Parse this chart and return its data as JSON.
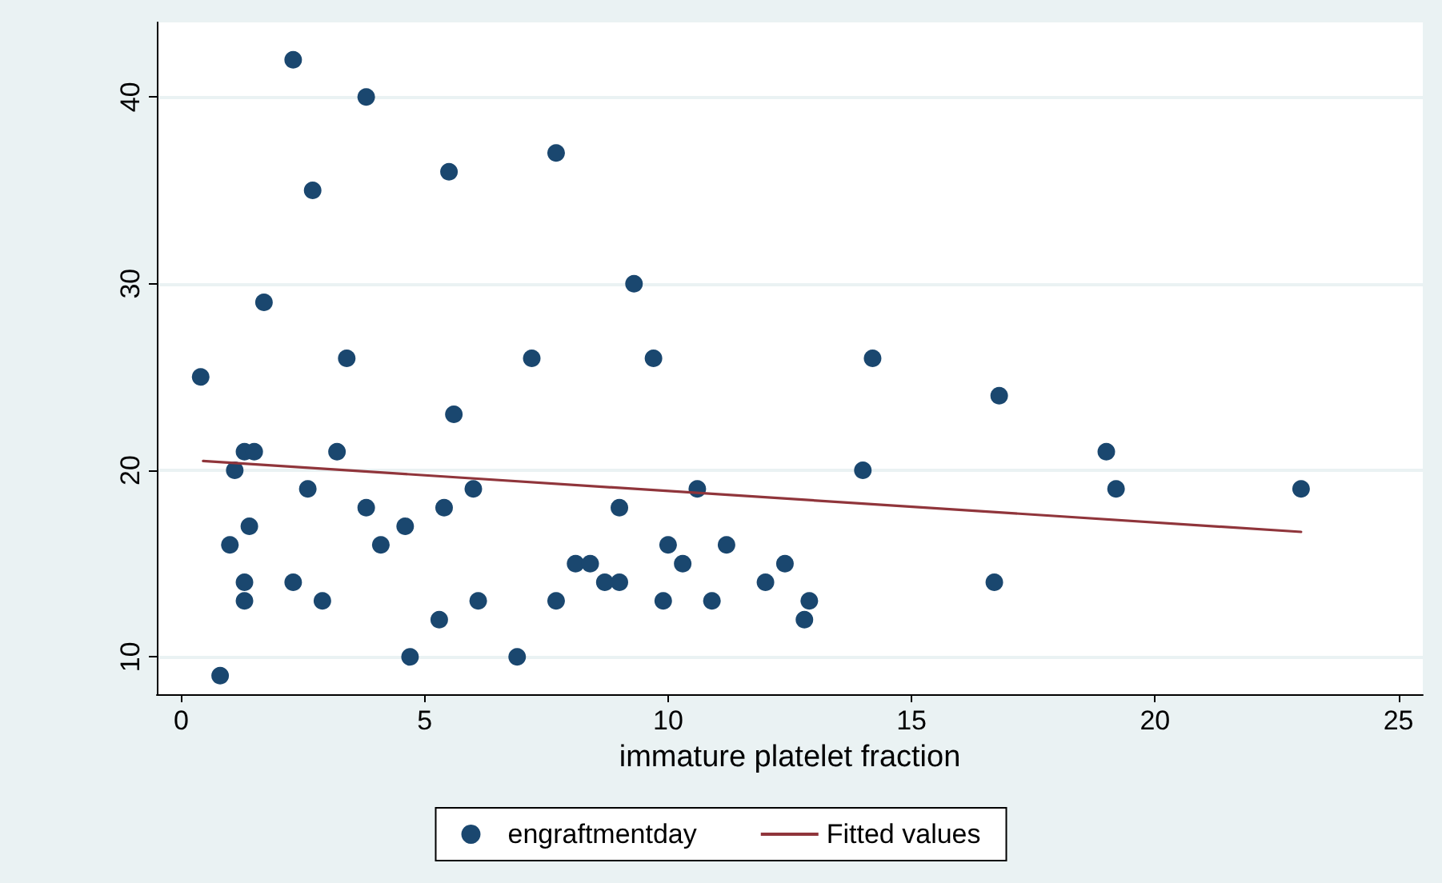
{
  "chart_data": {
    "type": "scatter",
    "xlabel": "immature platelet fraction",
    "xlim": [
      -0.5,
      25.5
    ],
    "xticks": [
      0,
      5,
      10,
      15,
      20,
      25
    ],
    "ylim": [
      8,
      44
    ],
    "yticks": [
      10,
      20,
      30,
      40
    ],
    "grid": "y",
    "legend": "bottom",
    "marker": "circle",
    "series": [
      {
        "name": "engraftmentday",
        "type": "scatter",
        "color": "#1a476f",
        "x": [
          0.4,
          0.8,
          1.0,
          1.1,
          1.3,
          1.5,
          1.3,
          1.3,
          1.4,
          1.7,
          2.3,
          2.3,
          2.6,
          2.7,
          2.9,
          3.2,
          3.4,
          3.8,
          3.8,
          4.1,
          4.6,
          4.7,
          5.3,
          5.4,
          5.5,
          5.6,
          6.0,
          6.1,
          6.9,
          7.2,
          7.7,
          7.7,
          8.1,
          8.4,
          8.7,
          9.0,
          9.0,
          9.3,
          9.7,
          9.9,
          10.0,
          10.3,
          10.6,
          10.9,
          11.2,
          12.0,
          12.4,
          12.8,
          12.9,
          14.0,
          14.2,
          16.8,
          16.7,
          19.0,
          19.2,
          23.0
        ],
        "values": [
          25,
          9,
          16,
          20,
          21,
          21,
          14,
          13,
          17,
          29,
          42,
          14,
          19,
          35,
          13,
          21,
          26,
          18,
          40,
          16,
          17,
          10,
          12,
          18,
          36,
          23,
          19,
          13,
          10,
          26,
          37,
          13,
          15,
          15,
          14,
          14,
          18,
          30,
          26,
          13,
          16,
          15,
          19,
          13,
          16,
          14,
          15,
          12,
          13,
          20,
          26,
          24,
          14,
          21,
          19,
          19
        ]
      },
      {
        "name": "Fitted values",
        "type": "line",
        "color": "#90353b",
        "marker": "none",
        "line_style": "solid",
        "x": [
          0.45,
          23.0
        ],
        "values": [
          20.5,
          16.7
        ]
      }
    ]
  }
}
